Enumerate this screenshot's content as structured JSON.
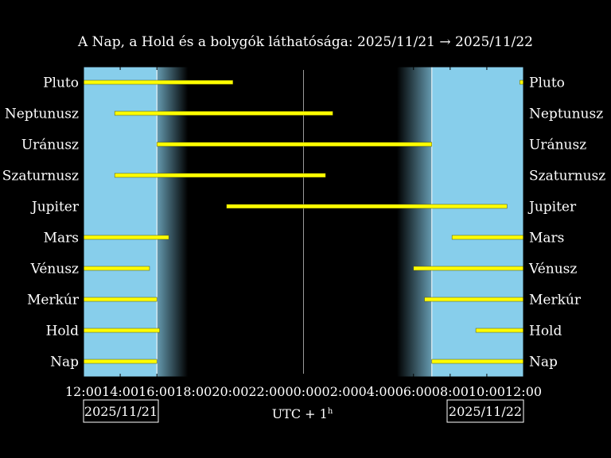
{
  "chart_data": {
    "type": "bar",
    "title": "A Nap, a Hold és a bolygók láthatósága: 2025/11/21 → 2025/11/22",
    "xlabel": "UTC + 1",
    "xlabel_sup": "h",
    "xlim": [
      12,
      36
    ],
    "x_ticks": [
      {
        "value": 12,
        "label": "12:00"
      },
      {
        "value": 14,
        "label": "14:00"
      },
      {
        "value": 16,
        "label": "16:00"
      },
      {
        "value": 18,
        "label": "18:00"
      },
      {
        "value": 20,
        "label": "20:00"
      },
      {
        "value": 22,
        "label": "22:00"
      },
      {
        "value": 24,
        "label": "00:00"
      },
      {
        "value": 26,
        "label": "02:00"
      },
      {
        "value": 28,
        "label": "04:00"
      },
      {
        "value": 30,
        "label": "06:00"
      },
      {
        "value": 32,
        "label": "08:00"
      },
      {
        "value": 34,
        "label": "10:00"
      },
      {
        "value": 36,
        "label": "12:00"
      }
    ],
    "date_left": "2025/11/21",
    "date_right": "2025/11/22",
    "sunset": 16.0,
    "civil_dusk_end": 17.7,
    "civil_dawn_start": 29.1,
    "sunrise": 31.0,
    "colors": {
      "day": "#87ceeb",
      "night": "#000000",
      "bar": "#ffff00",
      "text": "#ffffff"
    },
    "series": [
      {
        "name": "Pluto",
        "segments": [
          [
            12.0,
            20.15
          ],
          [
            35.8,
            36.0
          ]
        ]
      },
      {
        "name": "Neptunusz",
        "segments": [
          [
            13.7,
            25.6
          ]
        ]
      },
      {
        "name": "Uránusz",
        "segments": [
          [
            16.0,
            31.0
          ]
        ]
      },
      {
        "name": "Szaturnusz",
        "segments": [
          [
            13.7,
            25.2
          ]
        ]
      },
      {
        "name": "Jupiter",
        "segments": [
          [
            19.8,
            35.1
          ]
        ]
      },
      {
        "name": "Mars",
        "segments": [
          [
            12.0,
            16.65
          ],
          [
            32.1,
            36.0
          ]
        ]
      },
      {
        "name": "Vénusz",
        "segments": [
          [
            12.0,
            15.6
          ],
          [
            30.0,
            36.0
          ]
        ]
      },
      {
        "name": "Merkúr",
        "segments": [
          [
            12.0,
            16.0
          ],
          [
            30.6,
            36.0
          ]
        ]
      },
      {
        "name": "Hold",
        "segments": [
          [
            12.0,
            16.15
          ],
          [
            33.4,
            36.0
          ]
        ]
      },
      {
        "name": "Nap",
        "segments": [
          [
            12.0,
            16.0
          ],
          [
            31.0,
            36.0
          ]
        ]
      }
    ]
  }
}
